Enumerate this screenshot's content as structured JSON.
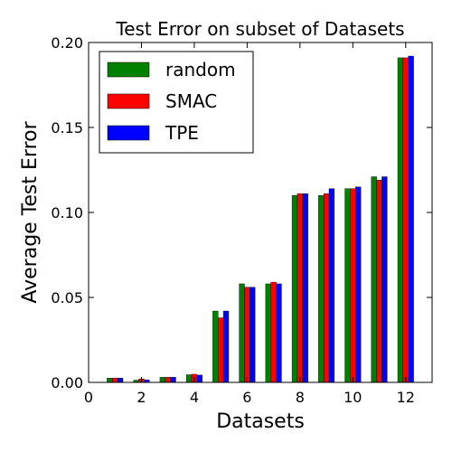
{
  "chart_data": {
    "type": "bar",
    "title": "Test Error on subset of Datasets",
    "xlabel": "Datasets",
    "ylabel": "Average Test Error",
    "xlim": [
      0,
      13
    ],
    "ylim": [
      0,
      0.2
    ],
    "xticks": [
      "0",
      "2",
      "4",
      "6",
      "8",
      "10",
      "12"
    ],
    "yticks": [
      "0.00",
      "0.05",
      "0.10",
      "0.15",
      "0.20"
    ],
    "legend_position": "top-left",
    "grid": false,
    "categories": [
      1,
      2,
      3,
      4,
      5,
      6,
      7,
      8,
      9,
      10,
      11,
      12
    ],
    "series": [
      {
        "name": "random",
        "color": "#008000",
        "values": [
          0.0025,
          0.0013,
          0.003,
          0.0045,
          0.042,
          0.058,
          0.058,
          0.11,
          0.11,
          0.114,
          0.121,
          0.191
        ]
      },
      {
        "name": "SMAC",
        "color": "#ff0000",
        "values": [
          0.0025,
          0.002,
          0.003,
          0.0048,
          0.038,
          0.056,
          0.059,
          0.111,
          0.111,
          0.114,
          0.119,
          0.191
        ]
      },
      {
        "name": "TPE",
        "color": "#0000ff",
        "values": [
          0.0025,
          0.0015,
          0.003,
          0.0043,
          0.042,
          0.056,
          0.058,
          0.111,
          0.114,
          0.115,
          0.121,
          0.192
        ]
      }
    ]
  }
}
